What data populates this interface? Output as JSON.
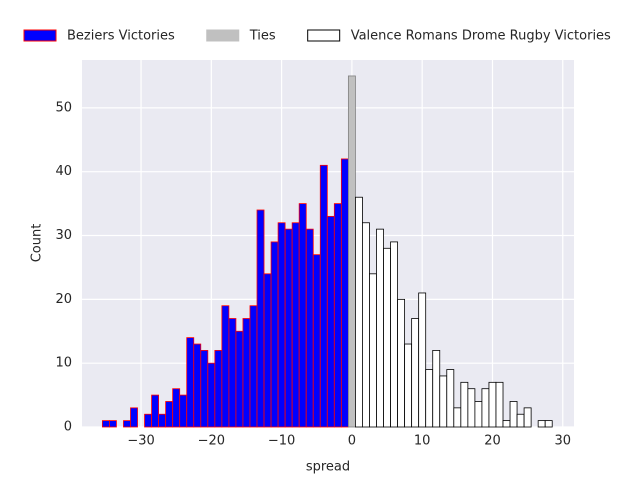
{
  "chart_data": {
    "type": "histogram",
    "xlabel": "spread",
    "ylabel": "Count",
    "xlim": [
      -38.4,
      31.6
    ],
    "ylim": [
      0,
      57.5
    ],
    "xticks": [
      {
        "value": -30,
        "label": "−30"
      },
      {
        "value": -20,
        "label": "−20"
      },
      {
        "value": -10,
        "label": "−10"
      },
      0,
      10,
      20,
      30
    ],
    "yticks": [
      0,
      10,
      20,
      30,
      40,
      50
    ],
    "grid": true,
    "legend": "top",
    "series": [
      {
        "name": "Beziers Victories",
        "color": "#0000ff",
        "edgecolor": "#ff0000",
        "bins": [
          -35.5,
          -34.5,
          -33.5,
          -32.5,
          -31.5,
          -30.5,
          -29.5,
          -28.5,
          -27.5,
          -26.5,
          -25.5,
          -24.5,
          -23.5,
          -22.5,
          -21.5,
          -20.5,
          -19.5,
          -18.5,
          -17.5,
          -16.5,
          -15.5,
          -14.5,
          -13.5,
          -12.5,
          -11.5,
          -10.5,
          -9.5,
          -8.5,
          -7.5,
          -6.5,
          -5.5,
          -4.5,
          -3.5,
          -2.5,
          -1.5,
          -0.5
        ],
        "values": [
          1,
          1,
          0,
          1,
          3,
          0,
          2,
          5,
          2,
          4,
          6,
          5,
          14,
          13,
          12,
          10,
          12,
          19,
          17,
          15,
          17,
          19,
          34,
          24,
          29,
          32,
          31,
          32,
          35,
          31,
          27,
          41,
          33,
          35,
          42
        ]
      },
      {
        "name": "Ties",
        "color": "#c0c0c0",
        "edgecolor": "#808080",
        "bins": [
          -0.5,
          0.5
        ],
        "values": [
          55
        ]
      },
      {
        "name": "Valence Romans Drome Rugby Victories",
        "color": "#ffffff",
        "edgecolor": "#000000",
        "bins": [
          0.5,
          1.5,
          2.5,
          3.5,
          4.5,
          5.5,
          6.5,
          7.5,
          8.5,
          9.5,
          10.5,
          11.5,
          12.5,
          13.5,
          14.5,
          15.5,
          16.5,
          17.5,
          18.5,
          19.5,
          20.5,
          21.5,
          22.5,
          23.5,
          24.5,
          25.5,
          26.5,
          27.5,
          28.5
        ],
        "values": [
          36,
          32,
          24,
          31,
          28,
          29,
          20,
          13,
          17,
          21,
          9,
          12,
          8,
          9,
          3,
          7,
          6,
          4,
          6,
          7,
          7,
          1,
          4,
          2,
          3,
          0,
          1,
          1
        ]
      }
    ]
  }
}
